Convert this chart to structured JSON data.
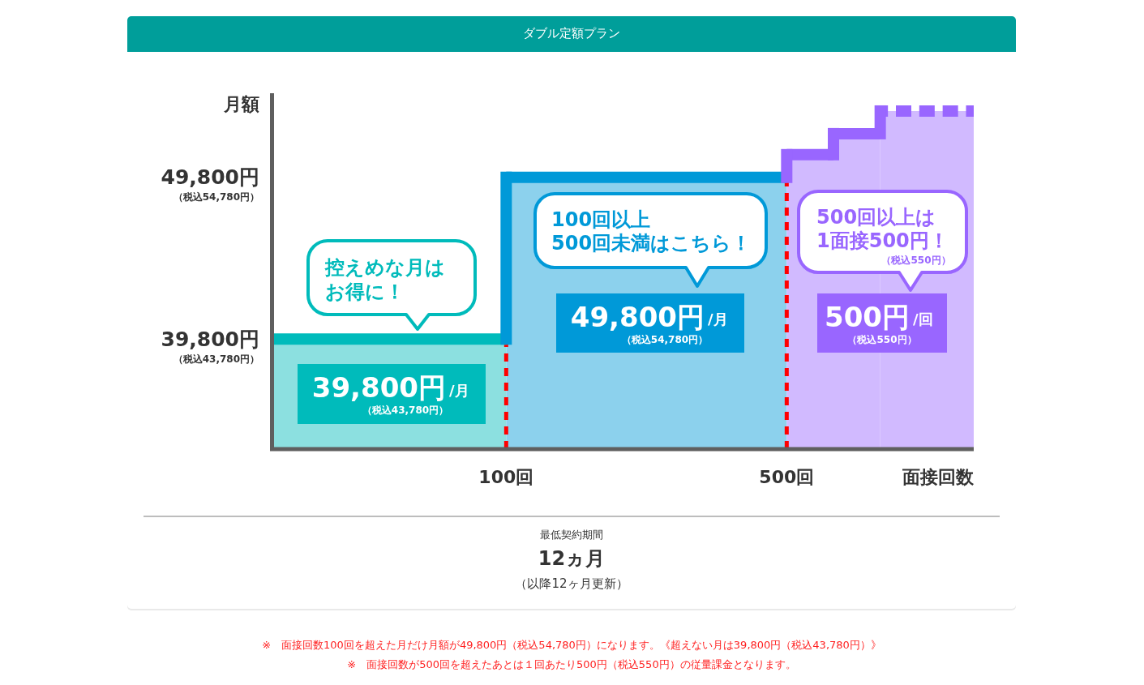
{
  "chart_data": {
    "type": "area",
    "title": "ダブル定額プラン",
    "xlabel": "面接回数",
    "ylabel": "月額",
    "categories": [
      null,
      null,
      null,
      null,
      null,
      "100回",
      null,
      null,
      null,
      null,
      null,
      "500回",
      null,
      null,
      null,
      null
    ],
    "series": [
      {
        "color": "#00bbbb",
        "values": [
          39800,
          39800,
          39800,
          39800,
          39800,
          39800,
          null,
          null,
          null,
          null,
          null,
          null,
          null,
          null,
          null,
          null
        ]
      },
      {
        "color": "#0099d8",
        "values": [
          null,
          null,
          null,
          null,
          null,
          49800,
          49800,
          49800,
          49800,
          49800,
          49800,
          49800,
          null,
          null,
          null,
          null
        ]
      },
      {
        "color": "#9966ff",
        "values": [
          null,
          null,
          null,
          null,
          null,
          null,
          null,
          null,
          null,
          null,
          null,
          51200,
          51200,
          null,
          null,
          null
        ]
      },
      {
        "color": "#9966ff",
        "values": [
          null,
          null,
          null,
          null,
          null,
          null,
          null,
          null,
          null,
          null,
          null,
          null,
          52500,
          52500,
          null,
          null
        ]
      },
      {
        "color": "#9966ff",
        "line_style": "dashed",
        "values": [
          null,
          null,
          null,
          null,
          null,
          null,
          null,
          null,
          null,
          null,
          null,
          null,
          null,
          53900,
          53900,
          53900
        ]
      }
    ],
    "ylim": [
      33000,
      55000
    ],
    "yticks": [
      {
        "value": 39800,
        "label": "39,800円"
      },
      {
        "value": 49800,
        "label": "49,800円"
      }
    ],
    "ref_lines": [
      {
        "axis": "x",
        "value": "100回",
        "color": "#ff0000",
        "line_style": "dashed"
      },
      {
        "axis": "x",
        "value": "500回",
        "color": "#ff0000",
        "line_style": "dashed"
      }
    ],
    "annotations": [
      "控えめな月は",
      "お得に！",
      "100回以上",
      "500回未満はこちら！",
      "500回以上は",
      "1面接500円！",
      "（税込550円）",
      "39,800円",
      "/月",
      "（税込43,780円）",
      "49,800円",
      "/月",
      "（税込54,780円）",
      "500円",
      "/回",
      "（税込550円）",
      "（税込54,780円）",
      "（税込43,780円）",
      "最低契約期間",
      "12ヵ月",
      "（以降12ヶ月更新）",
      "※　面接回数100回を超えた月だけ月額が49,800円（税込54,780円）になります。《超えない月は39,800円（税込43,780円）》",
      "※　面接回数が500回を超えたあとは１回あたり500円（税込550円）の従量課金となります。"
    ]
  }
}
